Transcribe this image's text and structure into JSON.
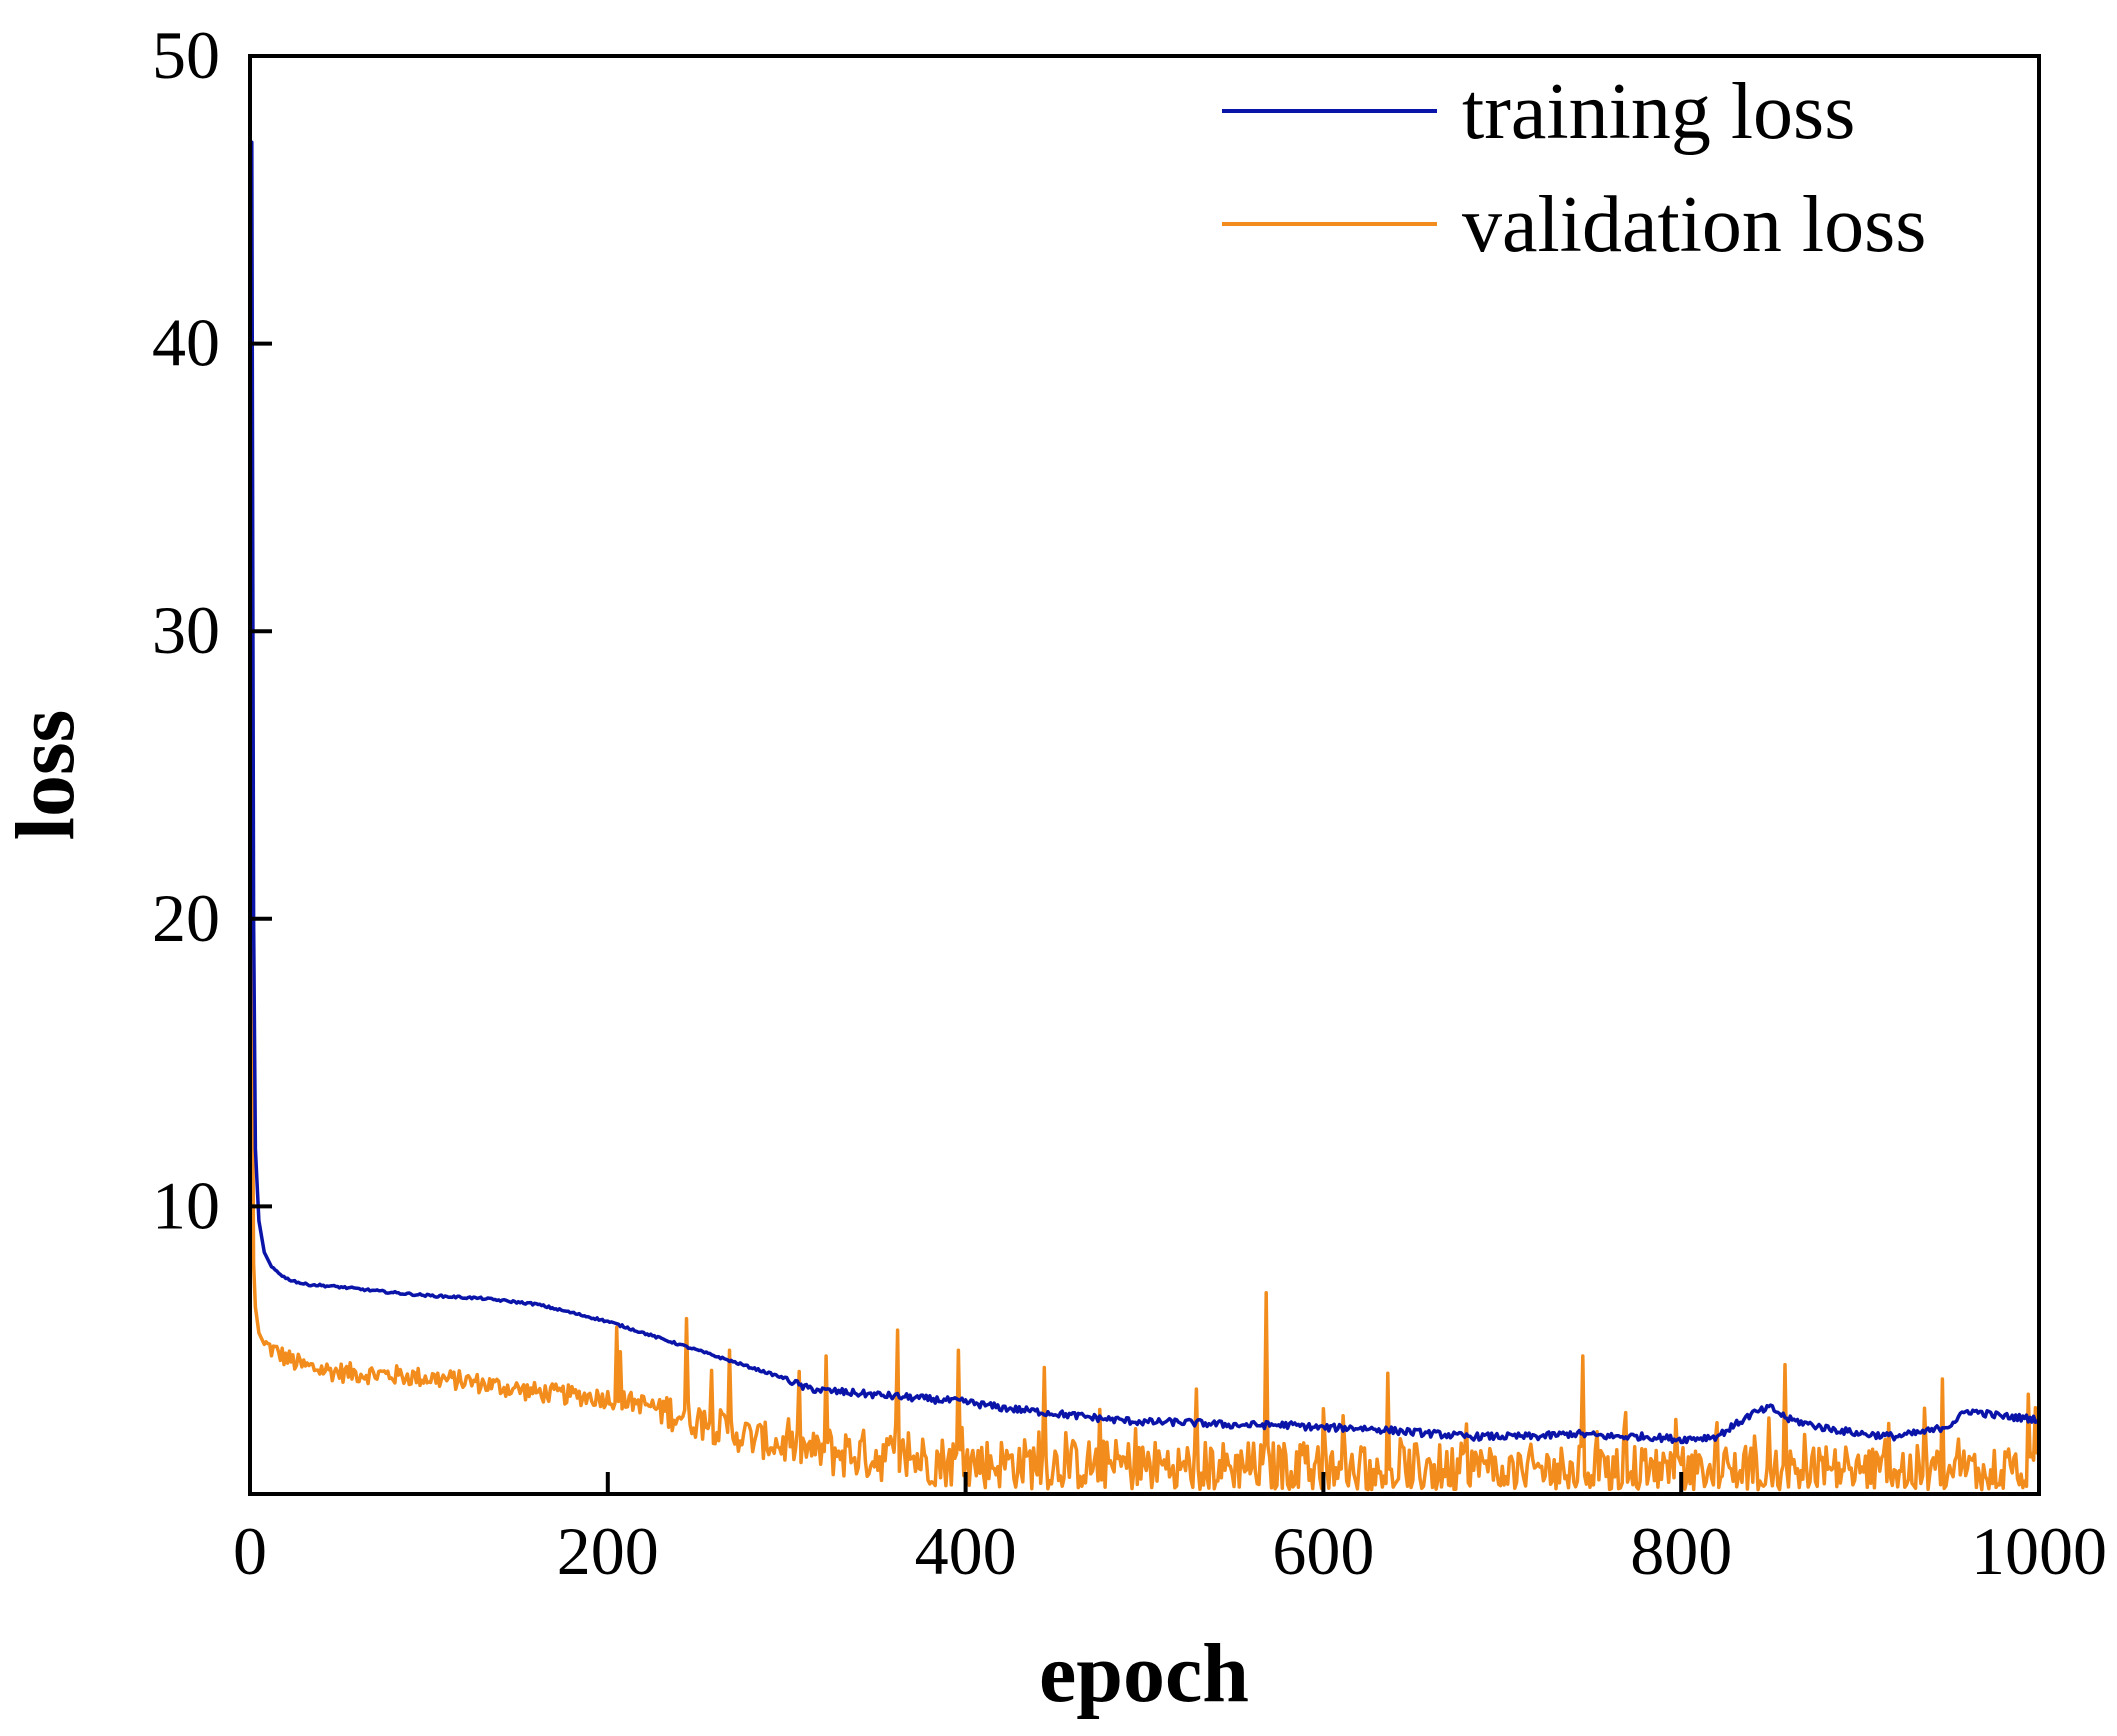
{
  "chart_data": {
    "type": "line",
    "title": "",
    "xlabel": "epoch",
    "ylabel": "loss",
    "xlim": [
      0,
      1000
    ],
    "ylim": [
      0,
      50
    ],
    "xticks": [
      0,
      200,
      400,
      600,
      800,
      1000
    ],
    "yticks": [
      10,
      20,
      30,
      40,
      50
    ],
    "xtick_labels": [
      "0",
      "200",
      "400",
      "600",
      "800",
      "1000"
    ],
    "ytick_labels": [
      "10",
      "20",
      "30",
      "40",
      "50"
    ],
    "grid": false,
    "legend": "top-right",
    "series": [
      {
        "name": "training loss",
        "color": "#0a14a8",
        "x": [
          0,
          1,
          2,
          3,
          5,
          8,
          12,
          20,
          30,
          50,
          80,
          100,
          130,
          160,
          180,
          200,
          220,
          240,
          260,
          280,
          300,
          310,
          320,
          340,
          360,
          380,
          400,
          420,
          450,
          480,
          500,
          520,
          550,
          580,
          600,
          620,
          640,
          660,
          680,
          700,
          720,
          740,
          760,
          780,
          800,
          820,
          840,
          850,
          860,
          880,
          900,
          920,
          940,
          950,
          960,
          980,
          1000
        ],
        "y": [
          38,
          47,
          20,
          12,
          9.5,
          8.4,
          7.9,
          7.5,
          7.3,
          7.2,
          7.0,
          6.9,
          6.8,
          6.6,
          6.3,
          6.0,
          5.6,
          5.2,
          4.8,
          4.4,
          4.0,
          3.7,
          3.6,
          3.5,
          3.4,
          3.3,
          3.2,
          3.0,
          2.8,
          2.6,
          2.5,
          2.5,
          2.4,
          2.4,
          2.3,
          2.3,
          2.2,
          2.1,
          2.0,
          2.0,
          2.0,
          2.1,
          2.0,
          2.0,
          1.9,
          2.0,
          2.8,
          3.0,
          2.6,
          2.3,
          2.1,
          2.0,
          2.2,
          2.4,
          2.9,
          2.7,
          2.6
        ]
      },
      {
        "name": "validation loss",
        "color": "#f28c1c",
        "x": [
          0,
          1,
          2,
          3,
          5,
          8,
          12,
          20,
          30,
          50,
          80,
          100,
          120,
          140,
          160,
          180,
          200,
          220,
          240,
          260,
          280,
          300,
          320,
          340,
          360,
          380,
          400,
          450,
          500,
          550,
          570,
          600,
          650,
          700,
          750,
          800,
          850,
          900,
          950,
          1000
        ],
        "y": [
          10,
          19,
          8,
          6.5,
          5.6,
          5.2,
          5.0,
          4.7,
          4.4,
          4.2,
          4.1,
          4.0,
          3.9,
          3.7,
          3.5,
          3.4,
          3.3,
          3.1,
          2.7,
          2.3,
          1.9,
          1.6,
          1.4,
          1.3,
          1.2,
          1.1,
          1.0,
          0.95,
          0.9,
          0.85,
          0.85,
          0.8,
          0.8,
          0.75,
          0.75,
          0.75,
          0.7,
          0.7,
          0.7,
          0.7
        ],
        "spikes": [
          {
            "x": 205,
            "y": 5.8
          },
          {
            "x": 244,
            "y": 6.1
          },
          {
            "x": 268,
            "y": 5.0
          },
          {
            "x": 322,
            "y": 4.8
          },
          {
            "x": 362,
            "y": 5.7
          },
          {
            "x": 396,
            "y": 5.0
          },
          {
            "x": 444,
            "y": 4.4
          },
          {
            "x": 568,
            "y": 7.0
          },
          {
            "x": 636,
            "y": 4.2
          },
          {
            "x": 745,
            "y": 4.8
          },
          {
            "x": 858,
            "y": 4.5
          },
          {
            "x": 946,
            "y": 4.0
          },
          {
            "x": 998,
            "y": 3.0
          }
        ]
      }
    ]
  }
}
